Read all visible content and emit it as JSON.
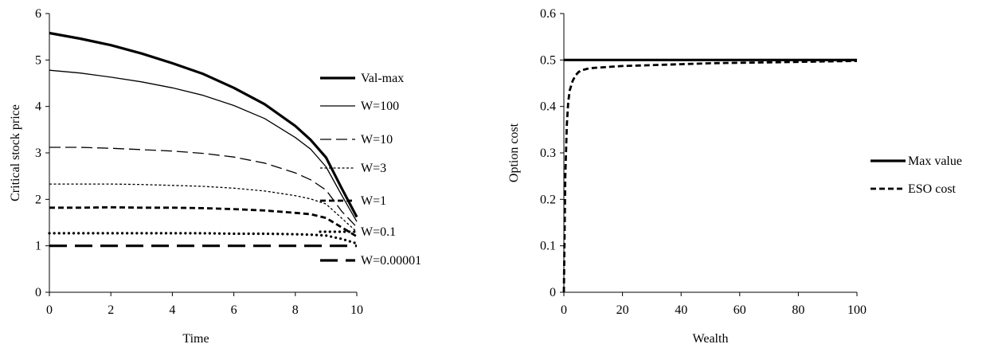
{
  "chart_data": [
    {
      "type": "line",
      "title": "",
      "xlabel": "Time",
      "ylabel": "Critical stock price",
      "xlim": [
        0,
        10
      ],
      "ylim": [
        0,
        6
      ],
      "x_ticks": [
        0,
        2,
        4,
        6,
        8,
        10
      ],
      "y_ticks": [
        0,
        1,
        2,
        3,
        4,
        5,
        6
      ],
      "grid": false,
      "legend_position": "right",
      "series": [
        {
          "name": "Val-max",
          "style": "thick-solid",
          "x": [
            0,
            1,
            2,
            3,
            4,
            5,
            6,
            7,
            8,
            8.5,
            9,
            9.5,
            10
          ],
          "y": [
            5.58,
            5.46,
            5.32,
            5.14,
            4.93,
            4.7,
            4.4,
            4.05,
            3.58,
            3.28,
            2.9,
            2.25,
            1.62
          ]
        },
        {
          "name": "W=100",
          "style": "thin-solid",
          "x": [
            0,
            1,
            2,
            3,
            4,
            5,
            6,
            7,
            8,
            8.5,
            9,
            9.5,
            10
          ],
          "y": [
            4.78,
            4.72,
            4.63,
            4.53,
            4.4,
            4.24,
            4.02,
            3.74,
            3.33,
            3.08,
            2.7,
            2.1,
            1.52
          ]
        },
        {
          "name": "W=10",
          "style": "long-dash",
          "x": [
            0,
            1,
            2,
            3,
            4,
            5,
            6,
            7,
            8,
            8.5,
            9,
            9.5,
            10
          ],
          "y": [
            3.12,
            3.12,
            3.1,
            3.07,
            3.04,
            2.99,
            2.91,
            2.78,
            2.57,
            2.42,
            2.2,
            1.75,
            1.4
          ]
        },
        {
          "name": "W=3",
          "style": "short-dash",
          "x": [
            0,
            1,
            2,
            3,
            4,
            5,
            6,
            7,
            8,
            8.5,
            9,
            9.5,
            10
          ],
          "y": [
            2.33,
            2.33,
            2.33,
            2.32,
            2.3,
            2.28,
            2.24,
            2.18,
            2.08,
            2.01,
            1.9,
            1.6,
            1.3
          ]
        },
        {
          "name": "W=1",
          "style": "thick-dash",
          "x": [
            0,
            1,
            2,
            3,
            4,
            5,
            6,
            7,
            8,
            8.5,
            9,
            9.5,
            10
          ],
          "y": [
            1.82,
            1.82,
            1.83,
            1.82,
            1.82,
            1.81,
            1.79,
            1.76,
            1.71,
            1.68,
            1.6,
            1.4,
            1.2
          ]
        },
        {
          "name": "W=0.1",
          "style": "dotted",
          "x": [
            0,
            1,
            2,
            3,
            4,
            5,
            6,
            7,
            8,
            8.5,
            9,
            9.5,
            10
          ],
          "y": [
            1.27,
            1.27,
            1.27,
            1.27,
            1.27,
            1.27,
            1.26,
            1.26,
            1.25,
            1.24,
            1.22,
            1.15,
            1.05
          ]
        },
        {
          "name": "W=0.00001",
          "style": "thick-long-dash",
          "x": [
            0,
            2,
            4,
            6,
            8,
            9,
            10
          ],
          "y": [
            1.0,
            1.0,
            1.0,
            1.0,
            1.0,
            1.0,
            1.0
          ]
        }
      ]
    },
    {
      "type": "line",
      "title": "",
      "xlabel": "Wealth",
      "ylabel": "Option cost",
      "xlim": [
        0,
        100
      ],
      "ylim": [
        0,
        0.6
      ],
      "x_ticks": [
        0,
        20,
        40,
        60,
        80,
        100
      ],
      "y_ticks": [
        0,
        0.1,
        0.2,
        0.3,
        0.4,
        0.5,
        0.6
      ],
      "grid": false,
      "legend_position": "right",
      "series": [
        {
          "name": "Max value",
          "style": "thick-solid",
          "x": [
            0,
            100
          ],
          "y": [
            0.5,
            0.5
          ]
        },
        {
          "name": "ESO cost",
          "style": "thick-dash",
          "x": [
            0,
            0.2,
            0.5,
            1,
            1.5,
            2,
            3,
            4,
            5,
            6,
            8,
            10,
            15,
            20,
            30,
            40,
            50,
            60,
            70,
            80,
            90,
            100
          ],
          "y": [
            0.0,
            0.1,
            0.25,
            0.36,
            0.41,
            0.435,
            0.455,
            0.467,
            0.474,
            0.478,
            0.481,
            0.483,
            0.485,
            0.487,
            0.489,
            0.491,
            0.493,
            0.494,
            0.495,
            0.496,
            0.497,
            0.498
          ]
        }
      ]
    }
  ]
}
